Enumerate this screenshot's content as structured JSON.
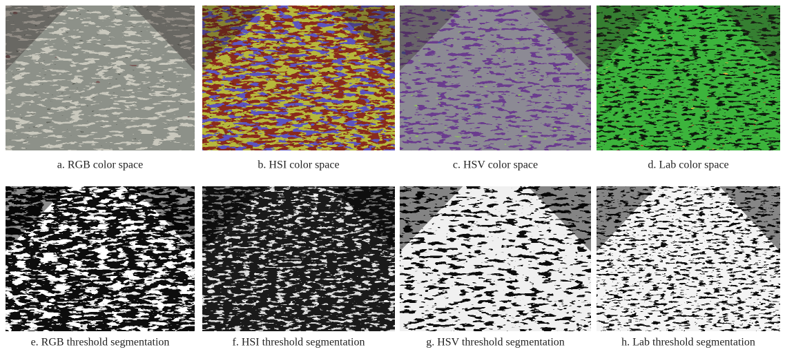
{
  "panels": [
    {
      "caption": "a. RGB color space"
    },
    {
      "caption": "b. HSI color space"
    },
    {
      "caption": "c. HSV color space"
    },
    {
      "caption": "d. Lab color space"
    },
    {
      "caption": "e. RGB threshold segmentation"
    },
    {
      "caption": "f. HSI threshold segmentation"
    },
    {
      "caption": "g. HSV threshold segmentation"
    },
    {
      "caption": "h. Lab threshold segmentation"
    }
  ]
}
